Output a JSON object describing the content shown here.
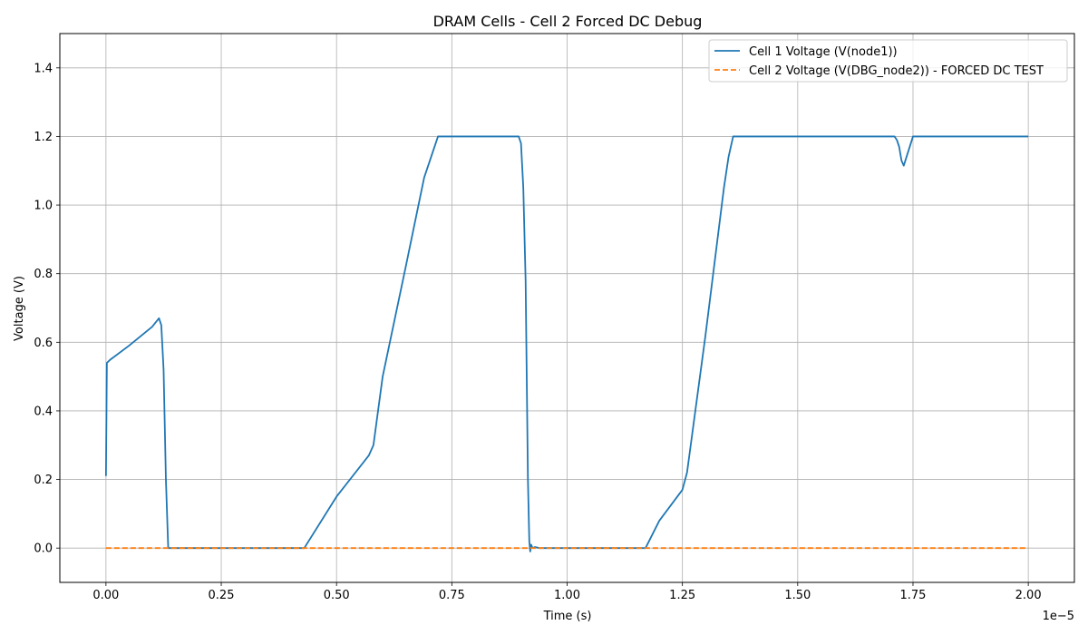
{
  "chart_data": {
    "type": "line",
    "title": "DRAM Cells - Cell 2 Forced DC Debug",
    "xlabel": "Time (s)",
    "ylabel": "Voltage (V)",
    "x_offset_text": "1e−5",
    "xlim": [
      -0.1,
      2.1
    ],
    "ylim": [
      -0.1,
      1.5
    ],
    "xticks": [
      0.0,
      0.25,
      0.5,
      0.75,
      1.0,
      1.25,
      1.5,
      1.75,
      2.0
    ],
    "xtick_labels": [
      "0.00",
      "0.25",
      "0.50",
      "0.75",
      "1.00",
      "1.25",
      "1.50",
      "1.75",
      "2.00"
    ],
    "yticks": [
      0.0,
      0.2,
      0.4,
      0.6,
      0.8,
      1.0,
      1.2,
      1.4
    ],
    "ytick_labels": [
      "0.0",
      "0.2",
      "0.4",
      "0.6",
      "0.8",
      "1.0",
      "1.2",
      "1.4"
    ],
    "grid": true,
    "legend_position": "top-right",
    "series": [
      {
        "name": "Cell 1 Voltage (V(node1))",
        "color": "#1f77b4",
        "style": "solid",
        "x": [
          0.0,
          0.002,
          0.01,
          0.05,
          0.1,
          0.115,
          0.12,
          0.125,
          0.13,
          0.135,
          0.2,
          0.3,
          0.43,
          0.5,
          0.57,
          0.58,
          0.6,
          0.65,
          0.69,
          0.72,
          0.73,
          0.75,
          0.8,
          0.895,
          0.9,
          0.905,
          0.91,
          0.915,
          0.918,
          0.92,
          0.922,
          0.925,
          0.93,
          0.94,
          1.0,
          1.17,
          1.2,
          1.25,
          1.26,
          1.3,
          1.34,
          1.35,
          1.36,
          1.4,
          1.5,
          1.6,
          1.71,
          1.715,
          1.72,
          1.725,
          1.73,
          1.75,
          1.8,
          1.9,
          2.0
        ],
        "y": [
          0.21,
          0.54,
          0.55,
          0.59,
          0.645,
          0.67,
          0.65,
          0.52,
          0.2,
          0.0,
          0.0,
          0.0,
          0.0,
          0.15,
          0.27,
          0.3,
          0.5,
          0.82,
          1.08,
          1.2,
          1.2,
          1.2,
          1.2,
          1.2,
          1.18,
          1.05,
          0.78,
          0.2,
          0.02,
          -0.01,
          0.01,
          0.0,
          0.003,
          0.0,
          0.0,
          0.0,
          0.08,
          0.17,
          0.22,
          0.62,
          1.05,
          1.14,
          1.2,
          1.2,
          1.2,
          1.2,
          1.2,
          1.19,
          1.17,
          1.13,
          1.115,
          1.2,
          1.2,
          1.2,
          1.2
        ]
      },
      {
        "name": "Cell 2 Voltage (V(DBG_node2)) - FORCED DC TEST",
        "color": "#ff7f0e",
        "style": "dashed",
        "x": [
          0.0,
          2.0
        ],
        "y": [
          0.0,
          0.0
        ]
      }
    ]
  }
}
